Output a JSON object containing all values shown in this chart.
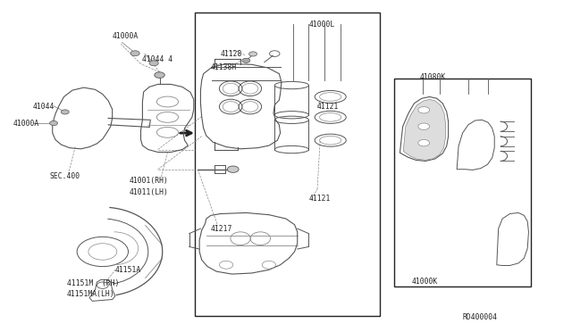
{
  "bg": "#ffffff",
  "lc": "#222222",
  "lc2": "#555555",
  "lc3": "#888888",
  "fig_w": 6.4,
  "fig_h": 3.72,
  "dpi": 100,
  "fs": 5.8,
  "labels": {
    "41000A_top": [
      0.195,
      0.895,
      "41000A"
    ],
    "41044_top": [
      0.248,
      0.825,
      "41044 4"
    ],
    "41044_left": [
      0.055,
      0.68,
      "41044"
    ],
    "41000A_left": [
      0.02,
      0.63,
      "41000A"
    ],
    "SEC400": [
      0.085,
      0.47,
      "SEC.400"
    ],
    "41001RH": [
      0.225,
      0.455,
      "41001(RH)"
    ],
    "41011LH": [
      0.225,
      0.42,
      "41011(LH)"
    ],
    "41151A": [
      0.2,
      0.185,
      "41151A"
    ],
    "41151M_RH": [
      0.115,
      0.145,
      "41151M  (RH)"
    ],
    "41151MA_LH": [
      0.115,
      0.11,
      "41151MA(LH)"
    ],
    "41000L": [
      0.54,
      0.93,
      "41000L"
    ],
    "41128": [
      0.385,
      0.84,
      "41128"
    ],
    "41138H": [
      0.368,
      0.8,
      "41138H"
    ],
    "41121_top": [
      0.555,
      0.68,
      "41121"
    ],
    "41121_bot": [
      0.54,
      0.4,
      "41121"
    ],
    "41217": [
      0.368,
      0.31,
      "41217"
    ],
    "41080K": [
      0.735,
      0.77,
      "41080K"
    ],
    "41000K": [
      0.72,
      0.15,
      "41000K"
    ],
    "RD400004": [
      0.81,
      0.04,
      "RD400004"
    ]
  }
}
